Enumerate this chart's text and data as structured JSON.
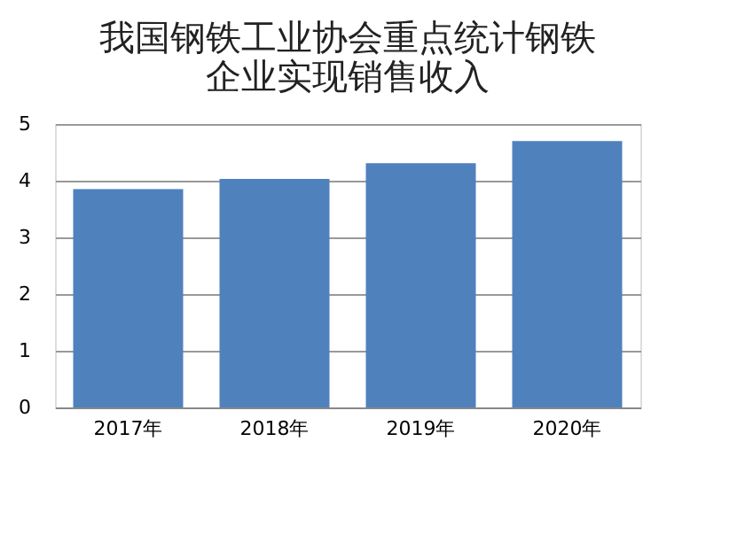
{
  "chart_data": {
    "type": "bar",
    "title": "我国钢铁工业协会重点统计钢铁企业实现销售收入",
    "categories": [
      "2017年",
      "2018年",
      "2019年",
      "2020年"
    ],
    "values": [
      3.85,
      4.03,
      4.31,
      4.7
    ],
    "color": "#4f81bd",
    "ylim": [
      0,
      5
    ],
    "yticks": [
      0,
      1,
      2,
      3,
      4,
      5
    ],
    "grid": "y",
    "legend": false
  }
}
